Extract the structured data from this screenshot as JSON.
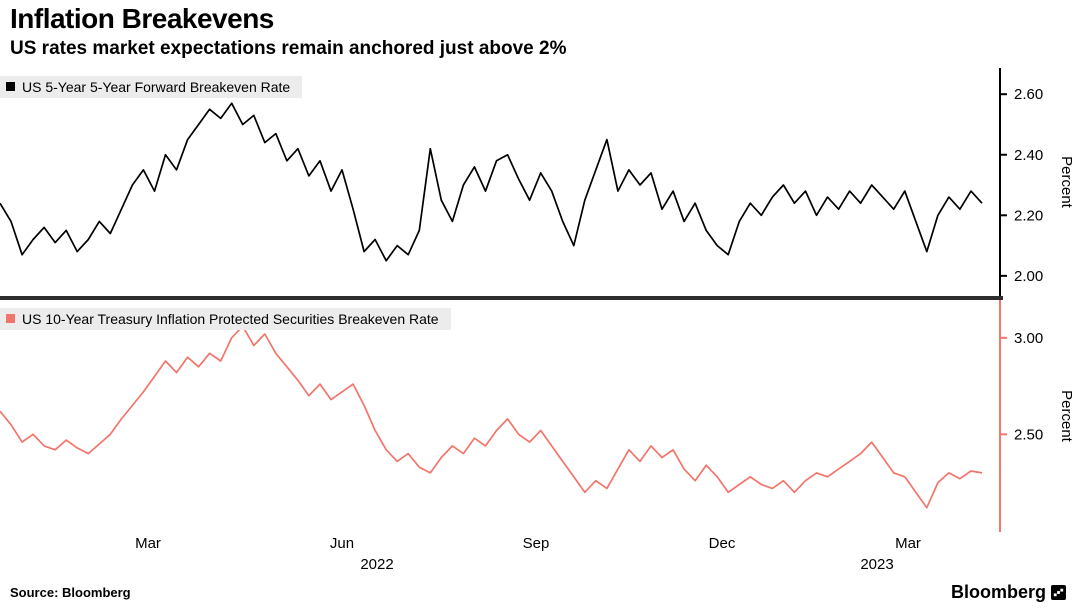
{
  "header": {
    "title": "Inflation Breakevens",
    "subtitle": "US rates market expectations remain anchored just above 2%"
  },
  "footer": {
    "source": "Source: Bloomberg",
    "brand": "Bloomberg"
  },
  "xaxis": {
    "ticks": [
      {
        "label": "Mar",
        "f": 0.148
      },
      {
        "label": "Jun",
        "f": 0.342
      },
      {
        "label": "Sep",
        "f": 0.536
      },
      {
        "label": "Dec",
        "f": 0.722
      },
      {
        "label": "Mar",
        "f": 0.908
      }
    ],
    "years": [
      {
        "label": "2022",
        "f": 0.377
      },
      {
        "label": "2023",
        "f": 0.877
      }
    ]
  },
  "chart_data": [
    {
      "type": "line",
      "title": "US 5-Year 5-Year Forward Breakeven Rate",
      "ylabel": "Percent",
      "ylim": [
        1.95,
        2.67
      ],
      "ytick_values": [
        2.6,
        2.4,
        2.2,
        2.0
      ],
      "ytick_labels": [
        "2.60",
        "2.40",
        "2.20",
        "2.00"
      ],
      "axis_color": "#000000",
      "grid": false,
      "legend_position": "top-left",
      "series": [
        {
          "name": "US 5-Year 5-Year Forward Breakeven Rate",
          "color": "#000000",
          "values": [
            2.24,
            2.18,
            2.07,
            2.12,
            2.16,
            2.11,
            2.15,
            2.08,
            2.12,
            2.18,
            2.14,
            2.22,
            2.3,
            2.35,
            2.28,
            2.4,
            2.35,
            2.45,
            2.5,
            2.55,
            2.52,
            2.57,
            2.5,
            2.53,
            2.44,
            2.47,
            2.38,
            2.42,
            2.33,
            2.38,
            2.28,
            2.35,
            2.22,
            2.08,
            2.12,
            2.05,
            2.1,
            2.07,
            2.15,
            2.42,
            2.25,
            2.18,
            2.3,
            2.36,
            2.28,
            2.38,
            2.4,
            2.32,
            2.25,
            2.34,
            2.28,
            2.18,
            2.1,
            2.25,
            2.35,
            2.45,
            2.28,
            2.35,
            2.3,
            2.34,
            2.22,
            2.28,
            2.18,
            2.24,
            2.15,
            2.1,
            2.07,
            2.18,
            2.24,
            2.2,
            2.26,
            2.3,
            2.24,
            2.28,
            2.2,
            2.26,
            2.22,
            2.28,
            2.24,
            2.3,
            2.26,
            2.22,
            2.28,
            2.18,
            2.08,
            2.2,
            2.26,
            2.22,
            2.28,
            2.24
          ]
        }
      ]
    },
    {
      "type": "line",
      "title": "US 10-Year Treasury Inflation Protected Securities Breakeven Rate",
      "ylabel": "Percent",
      "ylim": [
        2.02,
        3.17
      ],
      "ytick_values": [
        3.0,
        2.5
      ],
      "ytick_labels": [
        "3.00",
        "2.50"
      ],
      "axis_color": "#f2756b",
      "grid": false,
      "legend_position": "top-left",
      "series": [
        {
          "name": "US 10-Year Treasury Inflation Protected Securities Breakeven Rate",
          "color": "#f2756b",
          "values": [
            2.62,
            2.55,
            2.46,
            2.5,
            2.44,
            2.42,
            2.47,
            2.43,
            2.4,
            2.45,
            2.5,
            2.58,
            2.65,
            2.72,
            2.8,
            2.88,
            2.82,
            2.9,
            2.85,
            2.92,
            2.88,
            3.0,
            3.06,
            2.96,
            3.02,
            2.92,
            2.85,
            2.78,
            2.7,
            2.76,
            2.68,
            2.72,
            2.76,
            2.65,
            2.52,
            2.42,
            2.36,
            2.4,
            2.33,
            2.3,
            2.38,
            2.44,
            2.4,
            2.48,
            2.44,
            2.52,
            2.58,
            2.5,
            2.46,
            2.52,
            2.44,
            2.36,
            2.28,
            2.2,
            2.26,
            2.22,
            2.32,
            2.42,
            2.36,
            2.44,
            2.38,
            2.42,
            2.32,
            2.26,
            2.34,
            2.28,
            2.2,
            2.24,
            2.28,
            2.24,
            2.22,
            2.26,
            2.2,
            2.26,
            2.3,
            2.28,
            2.32,
            2.36,
            2.4,
            2.46,
            2.38,
            2.3,
            2.28,
            2.2,
            2.12,
            2.25,
            2.3,
            2.27,
            2.31,
            2.3
          ]
        }
      ]
    }
  ]
}
